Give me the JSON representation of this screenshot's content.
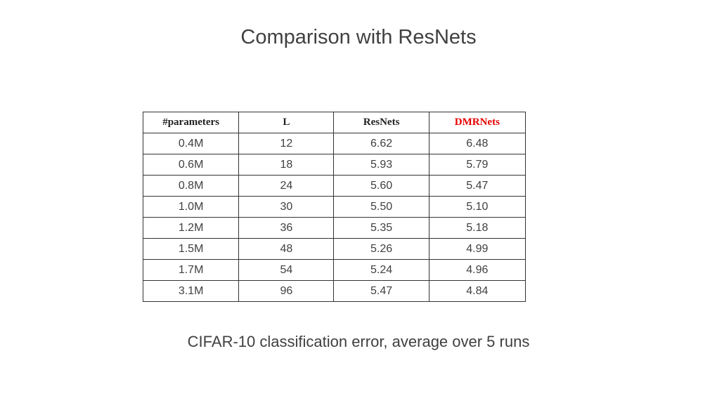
{
  "slide": {
    "title": "Comparison with ResNets",
    "caption": "CIFAR-10 classification error, average over 5 runs"
  },
  "table": {
    "headers": [
      "#parameters",
      "L",
      "ResNets",
      "DMRNets"
    ],
    "highlight_color": "#e60000",
    "rows": [
      [
        "0.4M",
        "12",
        "6.62",
        "6.48"
      ],
      [
        "0.6M",
        "18",
        "5.93",
        "5.79"
      ],
      [
        "0.8M",
        "24",
        "5.60",
        "5.47"
      ],
      [
        "1.0M",
        "30",
        "5.50",
        "5.10"
      ],
      [
        "1.2M",
        "36",
        "5.35",
        "5.18"
      ],
      [
        "1.5M",
        "48",
        "5.26",
        "4.99"
      ],
      [
        "1.7M",
        "54",
        "5.24",
        "4.96"
      ],
      [
        "3.1M",
        "96",
        "5.47",
        "4.84"
      ]
    ]
  }
}
